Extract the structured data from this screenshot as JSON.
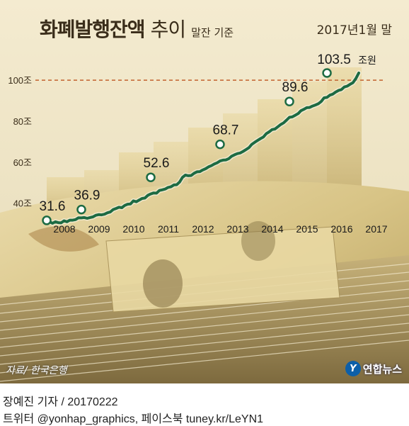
{
  "title": "화폐발행잔액 추이",
  "title_main": "화폐발행잔액",
  "title_sub": "추이",
  "title_note": "말잔 기준",
  "as_of_label": "2017년1월 말",
  "source": "자료/ 한국은행",
  "logo_text": "연합뉴스",
  "logo_mark": "Y",
  "byline": "장예진 기자 / 20170222",
  "social": "트위터 @yonhap_graphics, 페이스북 tuney.kr/LeYN1",
  "colors": {
    "line": "#1d6b43",
    "marker_fill": "#ffffff",
    "dashed_ref": "#c2622f",
    "axis_text": "#3a2d1a"
  },
  "chart_data": {
    "type": "line",
    "title": "화폐발행잔액 추이",
    "subtitle": "말잔 기준",
    "x_categories": [
      "2008",
      "2009",
      "2010",
      "2011",
      "2012",
      "2013",
      "2014",
      "2015",
      "2016",
      "2017"
    ],
    "y_tick_labels": [
      "40조",
      "60조",
      "80조",
      "100조"
    ],
    "y_ticks": [
      40,
      60,
      80,
      100
    ],
    "ylim": [
      25,
      108
    ],
    "unit": "조원",
    "reference_line": 100,
    "labeled_points": [
      {
        "x": 2008.0,
        "value": 31.6,
        "label": "31.6"
      },
      {
        "x": 2009.0,
        "value": 36.9,
        "label": "36.9"
      },
      {
        "x": 2011.0,
        "value": 52.6,
        "label": "52.6"
      },
      {
        "x": 2013.0,
        "value": 68.7,
        "label": "68.7"
      },
      {
        "x": 2015.0,
        "value": 89.6,
        "label": "89.6"
      },
      {
        "x": 2016.083,
        "value": 103.5,
        "label": "103.5"
      }
    ],
    "last_point_unit": "조원",
    "series": [
      {
        "values": [
          [
            2008.0,
            31.6
          ],
          [
            2008.083,
            30.9
          ],
          [
            2008.167,
            30.2
          ],
          [
            2008.25,
            30.9
          ],
          [
            2008.333,
            30.5
          ],
          [
            2008.417,
            30.4
          ],
          [
            2008.5,
            31.4
          ],
          [
            2008.583,
            30.9
          ],
          [
            2008.667,
            31.7
          ],
          [
            2008.75,
            31.7
          ],
          [
            2008.833,
            32.0
          ],
          [
            2008.917,
            32.9
          ],
          [
            2009.0,
            32.8
          ],
          [
            2009.083,
            33.0
          ],
          [
            2009.167,
            32.6
          ],
          [
            2009.25,
            33.0
          ],
          [
            2009.333,
            33.3
          ],
          [
            2009.417,
            34.1
          ],
          [
            2009.5,
            34.4
          ],
          [
            2009.583,
            34.3
          ],
          [
            2009.667,
            34.6
          ],
          [
            2009.75,
            35.3
          ],
          [
            2009.833,
            35.7
          ],
          [
            2009.917,
            36.9
          ],
          [
            2010.0,
            37.4
          ],
          [
            2010.083,
            38.0
          ],
          [
            2010.167,
            37.8
          ],
          [
            2010.25,
            38.9
          ],
          [
            2010.333,
            39.5
          ],
          [
            2010.417,
            39.6
          ],
          [
            2010.5,
            41.1
          ],
          [
            2010.583,
            40.7
          ],
          [
            2010.667,
            41.5
          ],
          [
            2010.75,
            42.3
          ],
          [
            2010.833,
            42.5
          ],
          [
            2010.917,
            43.8
          ],
          [
            2011.0,
            44.5
          ],
          [
            2011.083,
            45.0
          ],
          [
            2011.167,
            44.9
          ],
          [
            2011.25,
            46.2
          ],
          [
            2011.333,
            46.5
          ],
          [
            2011.417,
            46.9
          ],
          [
            2011.5,
            47.7
          ],
          [
            2011.583,
            48.0
          ],
          [
            2011.667,
            48.9
          ],
          [
            2011.75,
            49.0
          ],
          [
            2011.833,
            50.3
          ],
          [
            2011.917,
            52.6
          ],
          [
            2012.0,
            53.7
          ],
          [
            2012.083,
            53.4
          ],
          [
            2012.167,
            53.5
          ],
          [
            2012.25,
            54.6
          ],
          [
            2012.333,
            55.3
          ],
          [
            2012.417,
            55.4
          ],
          [
            2012.5,
            56.2
          ],
          [
            2012.583,
            56.8
          ],
          [
            2012.667,
            57.7
          ],
          [
            2012.75,
            58.3
          ],
          [
            2012.833,
            59.1
          ],
          [
            2012.917,
            59.7
          ],
          [
            2013.0,
            60.6
          ],
          [
            2013.083,
            61.0
          ],
          [
            2013.167,
            61.1
          ],
          [
            2013.25,
            61.7
          ],
          [
            2013.333,
            62.9
          ],
          [
            2013.417,
            63.6
          ],
          [
            2013.5,
            64.2
          ],
          [
            2013.583,
            64.5
          ],
          [
            2013.667,
            65.3
          ],
          [
            2013.75,
            66.2
          ],
          [
            2013.833,
            67.1
          ],
          [
            2013.917,
            68.7
          ],
          [
            2014.0,
            69.7
          ],
          [
            2014.083,
            70.6
          ],
          [
            2014.167,
            71.5
          ],
          [
            2014.25,
            72.3
          ],
          [
            2014.333,
            73.9
          ],
          [
            2014.417,
            74.8
          ],
          [
            2014.5,
            75.9
          ],
          [
            2014.583,
            76.2
          ],
          [
            2014.667,
            77.3
          ],
          [
            2014.75,
            78.4
          ],
          [
            2014.833,
            79.2
          ],
          [
            2014.917,
            80.5
          ],
          [
            2015.0,
            81.9
          ],
          [
            2015.083,
            82.1
          ],
          [
            2015.167,
            82.9
          ],
          [
            2015.25,
            83.7
          ],
          [
            2015.333,
            85.1
          ],
          [
            2015.417,
            85.8
          ],
          [
            2015.5,
            86.6
          ],
          [
            2015.583,
            86.7
          ],
          [
            2015.667,
            87.4
          ],
          [
            2015.75,
            87.9
          ],
          [
            2015.833,
            88.5
          ],
          [
            2015.917,
            89.6
          ],
          [
            2016.0,
            91.4
          ],
          [
            2016.083,
            91.6
          ],
          [
            2016.167,
            92.7
          ],
          [
            2016.25,
            93.2
          ],
          [
            2016.333,
            94.2
          ],
          [
            2016.417,
            95.0
          ],
          [
            2016.5,
            95.4
          ],
          [
            2016.583,
            96.7
          ],
          [
            2016.667,
            97.1
          ],
          [
            2016.75,
            98.0
          ],
          [
            2016.833,
            98.8
          ],
          [
            2016.917,
            100.8
          ],
          [
            2017.0,
            103.5
          ]
        ]
      }
    ]
  }
}
